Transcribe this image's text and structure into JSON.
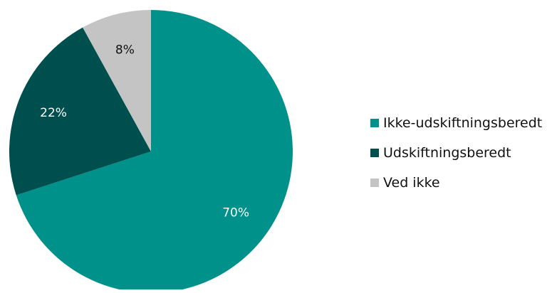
{
  "chart_data": {
    "type": "pie",
    "start_angle_deg": 0,
    "direction": "clockwise",
    "legend_position": "right",
    "slices": [
      {
        "label": "Ikke-udskiftningsberedt",
        "value": 70,
        "value_label": "70%",
        "color": "#00918A",
        "label_color": "#ffffff"
      },
      {
        "label": "Udskiftningsberedt",
        "value": 22,
        "value_label": "22%",
        "color": "#004F4F",
        "label_color": "#ffffff"
      },
      {
        "label": "Ved ikke",
        "value": 8,
        "value_label": "8%",
        "color": "#C4C4C4",
        "label_color": "#111111"
      }
    ]
  }
}
